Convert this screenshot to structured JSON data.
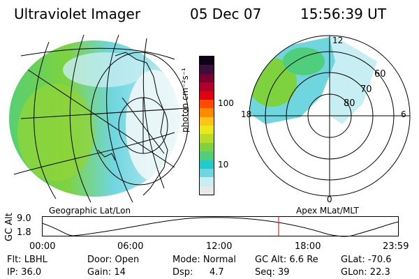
{
  "header": {
    "instrument": "Ultraviolet Imager",
    "date": "05 Dec 07",
    "time": "15:56:39 UT"
  },
  "map_panel": {
    "label": "Geographic Lat/Lon"
  },
  "polar_panel": {
    "label": "Apex MLat/MLT",
    "mlt_labels": [
      "12",
      "18",
      "6",
      "0"
    ],
    "mlat_labels": [
      "60",
      "70",
      "80"
    ]
  },
  "colorbar": {
    "unit_label": "photon cm⁻²s⁻¹",
    "ticks": [
      "100",
      "10"
    ],
    "colors": [
      "#e8e8e8",
      "#c7eef2",
      "#6fd6e0",
      "#22c9cf",
      "#4fcf7c",
      "#7ed23e",
      "#b8dd28",
      "#e8e81a",
      "#ffc414",
      "#ff8a00",
      "#ff4b00",
      "#e00010",
      "#b0002a",
      "#7a0030",
      "#3d0d3c",
      "#100018"
    ]
  },
  "altitude_panel": {
    "axis_label": "GC Alt",
    "y_ticks": [
      "9.0",
      "1.8"
    ],
    "x_ticks": [
      "00:00",
      "06:00",
      "12:00",
      "18:00",
      "23:59"
    ]
  },
  "info": {
    "flt": "Flt: LBHL",
    "ip": "IP: 36.0",
    "door": "Door: Open",
    "gain": "Gain: 14",
    "mode": "Mode: Normal",
    "dsp_label": "Dsp:",
    "dsp_value": "4.7",
    "gc_alt": "GC Alt: 6.6 Re",
    "seq": "Seq: 39",
    "glat": "GLat: -70.6",
    "glon": "GLon: 22.3"
  },
  "colors": {
    "auroral_green": "#66cc33",
    "auroral_cyan": "#33ccdd",
    "marker_red": "#cc0000"
  }
}
